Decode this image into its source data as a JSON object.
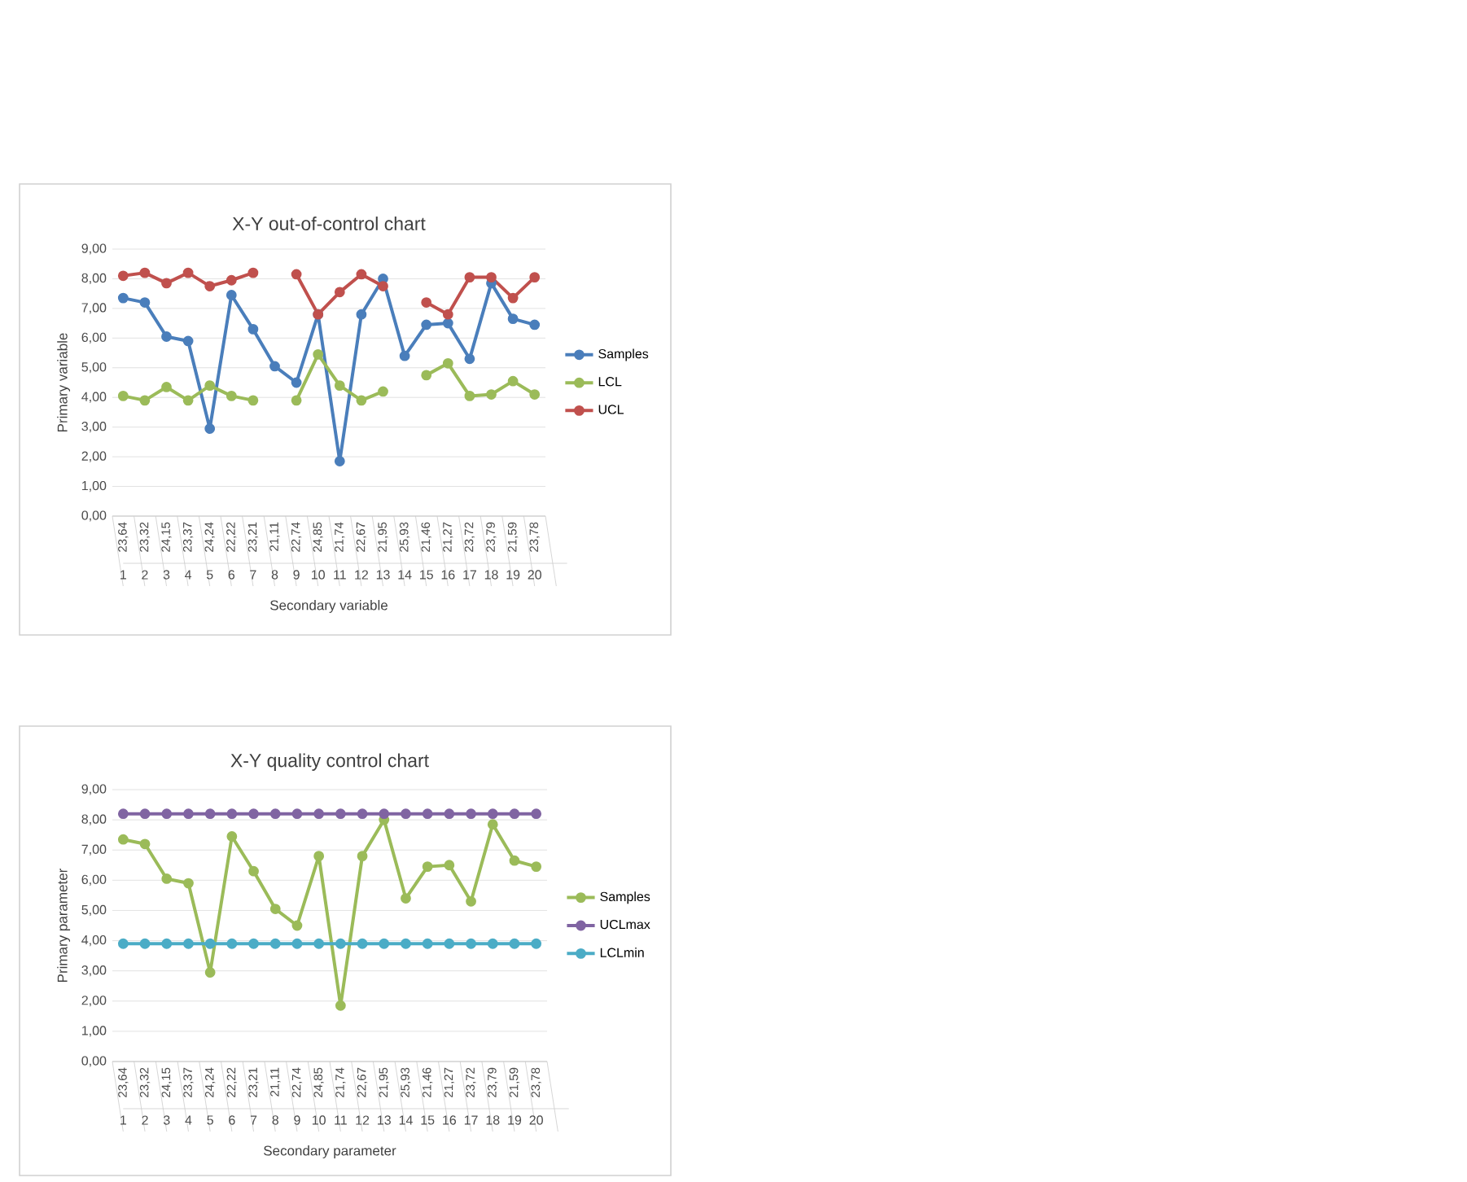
{
  "chart_data": [
    {
      "type": "line",
      "title": "X-Y out-of-control chart",
      "xlabel": "Secondary variable",
      "ylabel": "Primary variable",
      "categories": [
        "23,64",
        "23,32",
        "24,15",
        "23,37",
        "24,24",
        "22,22",
        "23,21",
        "21,11",
        "22,74",
        "24,85",
        "21,74",
        "22,67",
        "21,95",
        "25,93",
        "21,46",
        "21,27",
        "23,72",
        "23,79",
        "21,59",
        "23,78"
      ],
      "annotations": [
        "1",
        "2",
        "3",
        "4",
        "5",
        "6",
        "7",
        "8",
        "9",
        "10",
        "11",
        "12",
        "13",
        "14",
        "15",
        "16",
        "17",
        "18",
        "19",
        "20"
      ],
      "series": [
        {
          "name": "Samples",
          "color": "#4a7ebb",
          "values": [
            7.35,
            7.2,
            6.05,
            5.9,
            2.95,
            7.45,
            6.3,
            5.05,
            4.5,
            6.8,
            1.85,
            6.8,
            8.0,
            5.4,
            6.45,
            6.5,
            5.3,
            7.85,
            6.65,
            6.45
          ]
        },
        {
          "name": "LCL",
          "color": "#9bbb59",
          "values": [
            4.05,
            3.9,
            4.35,
            3.9,
            4.4,
            4.05,
            3.9,
            null,
            3.9,
            5.45,
            4.4,
            3.9,
            4.2,
            null,
            4.75,
            5.15,
            4.05,
            4.1,
            4.55,
            4.1
          ]
        },
        {
          "name": "UCL",
          "color": "#c0504d",
          "values": [
            8.1,
            8.2,
            7.85,
            8.2,
            7.75,
            7.95,
            8.2,
            null,
            8.15,
            6.8,
            7.55,
            8.15,
            7.75,
            null,
            7.2,
            6.8,
            8.05,
            8.05,
            7.35,
            8.05
          ]
        }
      ],
      "ylim": [
        0,
        9
      ],
      "yticks": [
        {
          "value": 0,
          "label": "0,00"
        },
        {
          "value": 1,
          "label": "1,00"
        },
        {
          "value": 2,
          "label": "2,00"
        },
        {
          "value": 3,
          "label": "3,00"
        },
        {
          "value": 4,
          "label": "4,00"
        },
        {
          "value": 5,
          "label": "5,00"
        },
        {
          "value": 6,
          "label": "6,00"
        },
        {
          "value": 7,
          "label": "7,00"
        },
        {
          "value": 8,
          "label": "8,00"
        },
        {
          "value": 9,
          "label": "9,00"
        }
      ],
      "grid": "y",
      "legend": "right",
      "marker": "circle",
      "line_style": "solid"
    },
    {
      "type": "line",
      "title": "X-Y quality control chart",
      "xlabel": "Secondary parameter",
      "ylabel": "Primary parameter",
      "categories": [
        "23,64",
        "23,32",
        "24,15",
        "23,37",
        "24,24",
        "22,22",
        "23,21",
        "21,11",
        "22,74",
        "24,85",
        "21,74",
        "22,67",
        "21,95",
        "25,93",
        "21,46",
        "21,27",
        "23,72",
        "23,79",
        "21,59",
        "23,78"
      ],
      "annotations": [
        "1",
        "2",
        "3",
        "4",
        "5",
        "6",
        "7",
        "8",
        "9",
        "10",
        "11",
        "12",
        "13",
        "14",
        "15",
        "16",
        "17",
        "18",
        "19",
        "20"
      ],
      "series": [
        {
          "name": "Samples",
          "color": "#9bbb59",
          "values": [
            7.35,
            7.2,
            6.05,
            5.9,
            2.95,
            7.45,
            6.3,
            5.05,
            4.5,
            6.8,
            1.85,
            6.8,
            8.0,
            5.4,
            6.45,
            6.5,
            5.3,
            7.85,
            6.65,
            6.45
          ]
        },
        {
          "name": "UCLmax",
          "color": "#8064a2",
          "values": [
            8.2,
            8.2,
            8.2,
            8.2,
            8.2,
            8.2,
            8.2,
            8.2,
            8.2,
            8.2,
            8.2,
            8.2,
            8.2,
            8.2,
            8.2,
            8.2,
            8.2,
            8.2,
            8.2,
            8.2
          ]
        },
        {
          "name": "LCLmin",
          "color": "#4bacc6",
          "values": [
            3.9,
            3.9,
            3.9,
            3.9,
            3.9,
            3.9,
            3.9,
            3.9,
            3.9,
            3.9,
            3.9,
            3.9,
            3.9,
            3.9,
            3.9,
            3.9,
            3.9,
            3.9,
            3.9,
            3.9
          ]
        }
      ],
      "ylim": [
        0,
        9
      ],
      "yticks": [
        {
          "value": 0,
          "label": "0,00"
        },
        {
          "value": 1,
          "label": "1,00"
        },
        {
          "value": 2,
          "label": "2,00"
        },
        {
          "value": 3,
          "label": "3,00"
        },
        {
          "value": 4,
          "label": "4,00"
        },
        {
          "value": 5,
          "label": "5,00"
        },
        {
          "value": 6,
          "label": "6,00"
        },
        {
          "value": 7,
          "label": "7,00"
        },
        {
          "value": 8,
          "label": "8,00"
        },
        {
          "value": 9,
          "label": "9,00"
        }
      ],
      "grid": "y",
      "legend": "right",
      "marker": "circle",
      "line_style": "solid"
    }
  ]
}
